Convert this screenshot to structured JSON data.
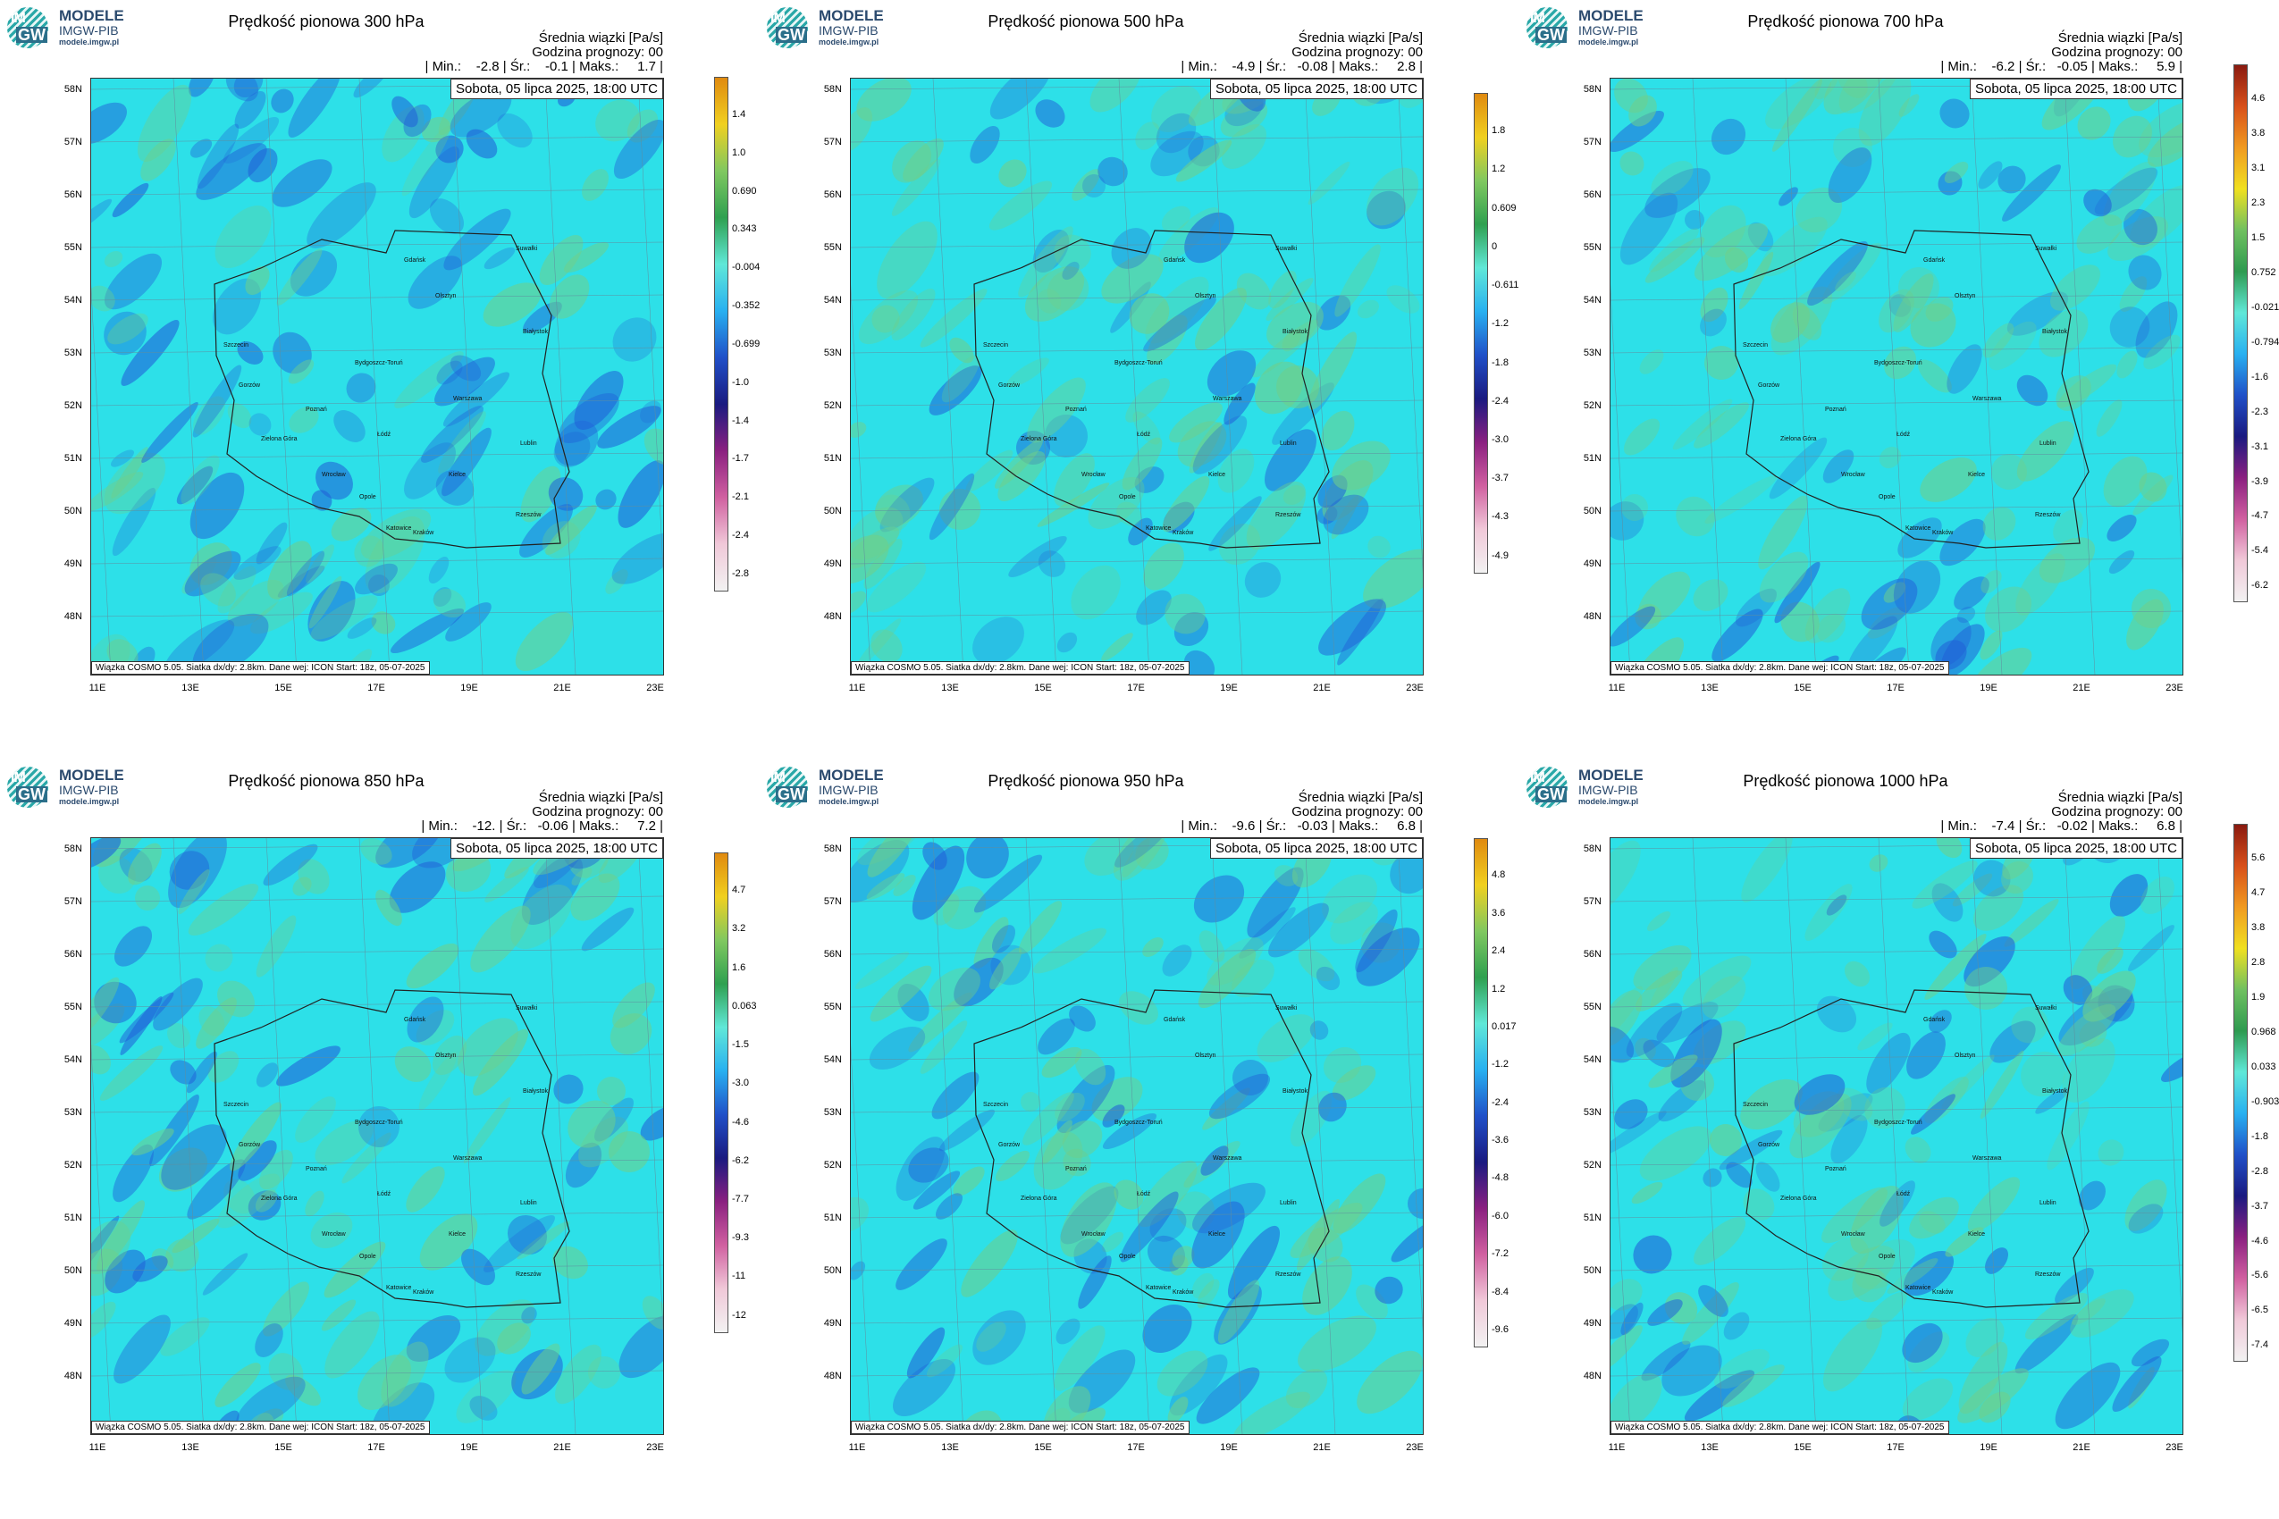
{
  "logo": {
    "line1": "MODELE",
    "line2": "IMGW-PIB",
    "line3": "modele.imgw.pl",
    "im": "IM",
    "gw": "GW"
  },
  "common": {
    "mean_label": "Średnia wiązki [Pa/s]",
    "hour_label": "Godzina prognozy: 00",
    "date_label": "Sobota, 05 lipca 2025, 18:00 UTC",
    "footer": "Wiązka COSMO 5.05. Siatka dx/dy: 2.8km. Dane wej: ICON Start: 18z, 05-07-2025",
    "lat_labels": [
      "58N",
      "57N",
      "56N",
      "55N",
      "54N",
      "53N",
      "52N",
      "51N",
      "50N",
      "49N",
      "48N"
    ],
    "lon_labels": [
      "11E",
      "13E",
      "15E",
      "17E",
      "19E",
      "21E",
      "23E"
    ]
  },
  "panels": [
    {
      "title": "Prędkość pionowa 300 hPa",
      "stats": "| Min.:    -2.8 | Śr.:    -0.1 | Maks.:     1.7 |",
      "cbar_ticks": [
        "1.4",
        "1.0",
        "0.690",
        "0.343",
        "-0.004",
        "-0.352",
        "-0.699",
        "-1.0",
        "-1.4",
        "-1.7",
        "-2.1",
        "-2.4",
        "-2.8"
      ]
    },
    {
      "title": "Prędkość pionowa 500 hPa",
      "stats": "| Min.:    -4.9 | Śr.:   -0.08 | Maks.:     2.8 |",
      "cbar_ticks": [
        "1.8",
        "1.2",
        "0.609",
        "0",
        "-0.611",
        "-1.2",
        "-1.8",
        "-2.4",
        "-3.0",
        "-3.7",
        "-4.3",
        "-4.9"
      ]
    },
    {
      "title": "Prędkość pionowa 700 hPa",
      "stats": "| Min.:    -6.2 | Śr.:   -0.05 | Maks.:     5.9 |",
      "cbar_ticks": [
        "4.6",
        "3.8",
        "3.1",
        "2.3",
        "1.5",
        "0.752",
        "-0.021",
        "-0.794",
        "-1.6",
        "-2.3",
        "-3.1",
        "-3.9",
        "-4.7",
        "-5.4",
        "-6.2"
      ]
    },
    {
      "title": "Prędkość pionowa 850 hPa",
      "stats": "| Min.:    -12. | Śr.:   -0.06 | Maks.:     7.2 |",
      "cbar_ticks": [
        "4.7",
        "3.2",
        "1.6",
        "0.063",
        "-1.5",
        "-3.0",
        "-4.6",
        "-6.2",
        "-7.7",
        "-9.3",
        "-11",
        "-12"
      ]
    },
    {
      "title": "Prędkość pionowa 950 hPa",
      "stats": "| Min.:    -9.6 | Śr.:   -0.03 | Maks.:     6.8 |",
      "cbar_ticks": [
        "4.8",
        "3.6",
        "2.4",
        "1.2",
        "0.017",
        "-1.2",
        "-2.4",
        "-3.6",
        "-4.8",
        "-6.0",
        "-7.2",
        "-8.4",
        "-9.6"
      ]
    },
    {
      "title": "Prędkość pionowa 1000 hPa",
      "stats": "| Min.:    -7.4 | Śr.:   -0.02 | Maks.:     6.8 |",
      "cbar_ticks": [
        "5.6",
        "4.7",
        "3.8",
        "2.8",
        "1.9",
        "0.968",
        "0.033",
        "-0.903",
        "-1.8",
        "-2.8",
        "-3.7",
        "-4.6",
        "-5.6",
        "-6.5",
        "-7.4"
      ]
    }
  ],
  "cities": [
    "Gdańsk",
    "Suwałki",
    "Olsztyn",
    "Białystok",
    "Szczecin",
    "Bydgoszcz-Toruń",
    "Gorzów",
    "Poznań",
    "Warszawa",
    "Zielona Góra",
    "Łódź",
    "Lublin",
    "Wrocław",
    "Kielce",
    "Opole",
    "Rzeszów",
    "Katowice",
    "Kraków"
  ],
  "colors": {
    "background_field": "#2de0e8",
    "updraft_field": "#2060d8",
    "downdraft_field": "#6fcf8a",
    "border_line": "#222222"
  }
}
